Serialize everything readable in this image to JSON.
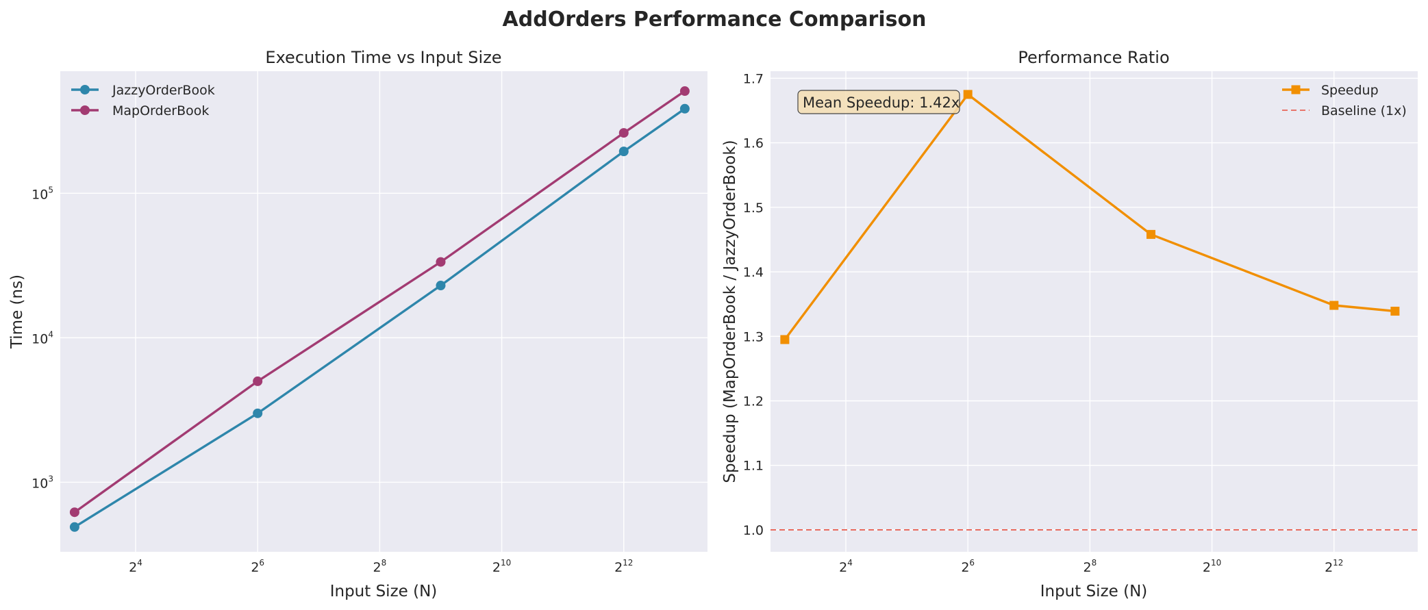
{
  "figure": {
    "title": "AddOrders Performance Comparison"
  },
  "colors": {
    "panel_bg": "#eaeaf2",
    "grid": "#ffffff",
    "jazzy": "#2e86ab",
    "map": "#a23b72",
    "speedup": "#f18f01",
    "baseline": "#e74c3c",
    "annot_bg": "#f5deb3"
  },
  "chart_data": [
    {
      "type": "line",
      "title": "Execution Time vs Input Size",
      "xlabel": "Input Size (N)",
      "ylabel": "Time (ns)",
      "xscale": "log2",
      "yscale": "log10",
      "xlim": [
        6.8,
        10600
      ],
      "ylim": [
        330,
        700000
      ],
      "x": [
        8,
        64,
        512,
        4096,
        8192
      ],
      "x_ticks": [
        {
          "base": "2",
          "exp": "4",
          "value": 16
        },
        {
          "base": "2",
          "exp": "6",
          "value": 64
        },
        {
          "base": "2",
          "exp": "8",
          "value": 256
        },
        {
          "base": "2",
          "exp": "10",
          "value": 1024
        },
        {
          "base": "2",
          "exp": "12",
          "value": 4096
        }
      ],
      "y_ticks": [
        {
          "base": "10",
          "exp": "3",
          "value": 1000
        },
        {
          "base": "10",
          "exp": "4",
          "value": 10000
        },
        {
          "base": "10",
          "exp": "5",
          "value": 100000
        }
      ],
      "series": [
        {
          "name": "JazzyOrderBook",
          "values": [
            490,
            3000,
            23000,
            195000,
            385000
          ],
          "marker": "circle"
        },
        {
          "name": "MapOrderBook",
          "values": [
            620,
            5000,
            33500,
            262000,
            510000
          ],
          "marker": "circle"
        }
      ],
      "grid": true,
      "legend_position": "upper-left"
    },
    {
      "type": "line",
      "title": "Performance Ratio",
      "xlabel": "Input Size (N)",
      "ylabel": "Speedup (MapOrderBook / JazzyOrderBook)",
      "xscale": "log2",
      "xlim": [
        6.8,
        10600
      ],
      "ylim": [
        0.966,
        1.711
      ],
      "x": [
        8,
        64,
        512,
        4096,
        8192
      ],
      "x_ticks": [
        {
          "base": "2",
          "exp": "4",
          "value": 16
        },
        {
          "base": "2",
          "exp": "6",
          "value": 64
        },
        {
          "base": "2",
          "exp": "8",
          "value": 256
        },
        {
          "base": "2",
          "exp": "10",
          "value": 1024
        },
        {
          "base": "2",
          "exp": "12",
          "value": 4096
        }
      ],
      "y_ticks": [
        "1.0",
        "1.1",
        "1.2",
        "1.3",
        "1.4",
        "1.5",
        "1.6",
        "1.7"
      ],
      "series": [
        {
          "name": "Speedup",
          "values": [
            1.295,
            1.675,
            1.458,
            1.348,
            1.339
          ],
          "marker": "square"
        }
      ],
      "baseline": {
        "name": "Baseline (1x)",
        "value": 1.0,
        "style": "dashed"
      },
      "annotation": "Mean Speedup: 1.42x",
      "grid": true,
      "legend_position": "upper-right"
    }
  ]
}
